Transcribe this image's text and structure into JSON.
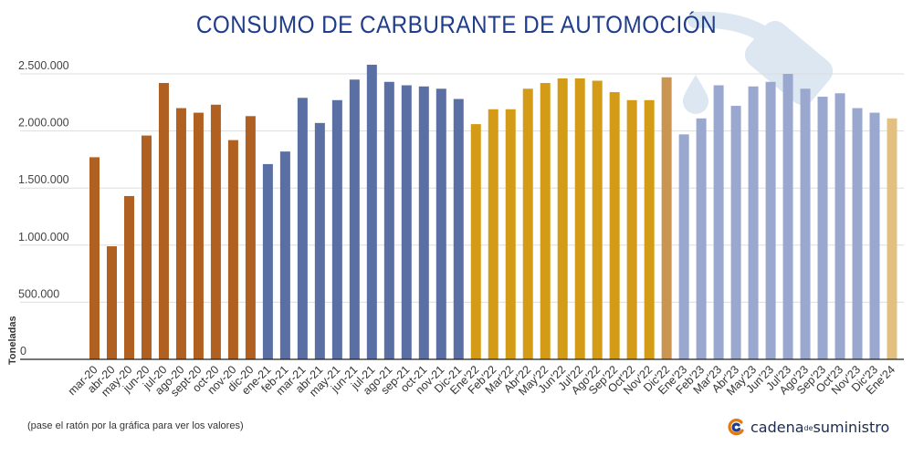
{
  "title": "CONSUMO DE CARBURANTE DE AUTOMOCIÓN",
  "note": "(pase el ratón por la gráfica para ver los valores)",
  "brand": {
    "part1": "cadena",
    "part2": "de",
    "part3": "suministro"
  },
  "colors": {
    "title": "#1f3d8a",
    "grid": "#dddddd",
    "axis": "#222222",
    "y2020": "#b06020",
    "y2021": "#5a6fa3",
    "y2022": "#d49b16",
    "y2022_last": "#c99550",
    "y2023": "#9aa8d0",
    "y2024": "#e3c07f",
    "watermark": "#dce7f2"
  },
  "chart_data": {
    "type": "bar",
    "ylabel": "Toneladas",
    "ylim": [
      0,
      2500000
    ],
    "yticks": [
      0,
      500000,
      1000000,
      1500000,
      2000000,
      2500000
    ],
    "ytick_labels": [
      "0",
      "500.000",
      "1.000.000",
      "1.500.000",
      "2.000.000",
      "2.500.000"
    ],
    "grid": true,
    "categories": [
      "mar-20",
      "abr-20",
      "may-20",
      "jun-20",
      "jul-20",
      "ago-20",
      "sept-20",
      "oct-20",
      "nov-20",
      "dic-20",
      "ene-21",
      "feb-21",
      "mar-21",
      "abr-21",
      "may-21",
      "jun-21",
      "jul-21",
      "ago-21",
      "sep-21",
      "oct-21",
      "nov-21",
      "Dic-21",
      "Ene'22",
      "Feb'22",
      "Mar'22",
      "Abr'22",
      "May'22",
      "Jun'22",
      "Jul'22",
      "Ago'22",
      "Sep'22",
      "Oct'22",
      "Nov'22",
      "Dic'22",
      "Ene'23",
      "Feb'23",
      "Mar'23",
      "Abr'23",
      "May'23",
      "Jun'23",
      "Jul'23",
      "Ago'23",
      "Sep'23",
      "Oct'23",
      "Nov'23",
      "Dic'23",
      "Ene'24"
    ],
    "values": [
      1770000,
      990000,
      1430000,
      1960000,
      2420000,
      2200000,
      2160000,
      2230000,
      1920000,
      2130000,
      1710000,
      1820000,
      2290000,
      2070000,
      2270000,
      2450000,
      2580000,
      2430000,
      2400000,
      2390000,
      2370000,
      2280000,
      2060000,
      2190000,
      2190000,
      2370000,
      2420000,
      2460000,
      2460000,
      2440000,
      2340000,
      2270000,
      2270000,
      2470000,
      1970000,
      2110000,
      2400000,
      2220000,
      2390000,
      2430000,
      2500000,
      2370000,
      2300000,
      2330000,
      2200000,
      2160000,
      2110000
    ],
    "color_keys": [
      "y2020",
      "y2020",
      "y2020",
      "y2020",
      "y2020",
      "y2020",
      "y2020",
      "y2020",
      "y2020",
      "y2020",
      "y2021",
      "y2021",
      "y2021",
      "y2021",
      "y2021",
      "y2021",
      "y2021",
      "y2021",
      "y2021",
      "y2021",
      "y2021",
      "y2021",
      "y2022",
      "y2022",
      "y2022",
      "y2022",
      "y2022",
      "y2022",
      "y2022",
      "y2022",
      "y2022",
      "y2022",
      "y2022",
      "y2022_last",
      "y2023",
      "y2023",
      "y2023",
      "y2023",
      "y2023",
      "y2023",
      "y2023",
      "y2023",
      "y2023",
      "y2023",
      "y2023",
      "y2023",
      "y2024"
    ]
  }
}
